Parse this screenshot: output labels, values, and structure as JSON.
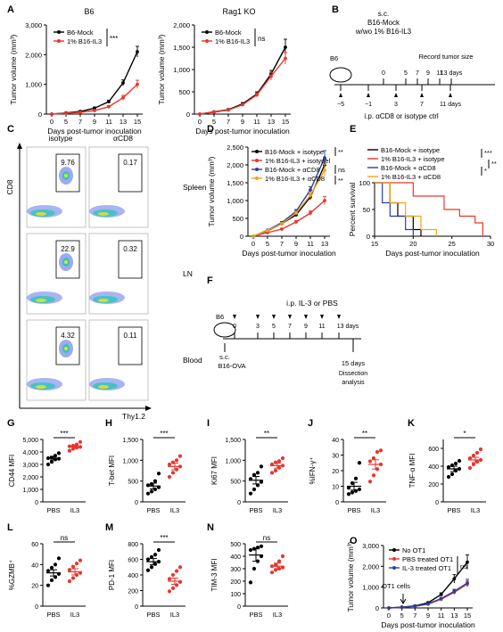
{
  "colors": {
    "black": "#000000",
    "red": "#e8362d",
    "blue": "#2b3fa0",
    "orange": "#f2a31b"
  },
  "panels": {
    "A": {
      "letter": "A",
      "charts": [
        {
          "id": "A1",
          "title": "B6",
          "ylabel": "Tumor volume (mm³)",
          "xlabel": "Days post-tumor inoculation",
          "xticks": [
            "0",
            "5",
            "7",
            "9",
            "11",
            "13",
            "15"
          ],
          "yticks": [
            "0",
            "1,000",
            "2,000",
            "3,000"
          ],
          "ymax": 3000,
          "series": [
            {
              "name": "B6-Mock",
              "color": "black",
              "values": [
                0,
                40,
                90,
                200,
                420,
                1050,
                2100
              ],
              "err": [
                0,
                10,
                20,
                30,
                50,
                100,
                180
              ]
            },
            {
              "name": "1% B16-IL3",
              "color": "red",
              "values": [
                0,
                30,
                60,
                120,
                250,
                550,
                1000
              ],
              "err": [
                0,
                10,
                15,
                25,
                40,
                80,
                140
              ]
            }
          ],
          "sig": "***"
        },
        {
          "id": "A2",
          "title": "Rag1 KO",
          "ylabel": "Tumor volume (mm³)",
          "xlabel": "Days post-tumor inoculation",
          "xticks": [
            "0",
            "5",
            "7",
            "9",
            "11",
            "13",
            "15"
          ],
          "yticks": [
            "0",
            "500",
            "1,000",
            "1,500",
            "2,000"
          ],
          "ymax": 2000,
          "series": [
            {
              "name": "B6-Mock",
              "color": "black",
              "values": [
                0,
                50,
                100,
                230,
                450,
                900,
                1500
              ],
              "err": [
                0,
                10,
                15,
                30,
                50,
                80,
                180
              ]
            },
            {
              "name": "1% B16-IL3",
              "color": "red",
              "values": [
                0,
                45,
                90,
                210,
                430,
                850,
                1250
              ],
              "err": [
                0,
                10,
                15,
                30,
                45,
                90,
                130
              ]
            }
          ],
          "sig": "ns"
        }
      ]
    },
    "B": {
      "letter": "B",
      "title1": "s.c.",
      "title2": "B16-Mock",
      "title3": "w/wo 1% B16-IL3",
      "record": "Record tumor size",
      "mouse": "B6",
      "top_days": [
        "0",
        "5",
        "7",
        "9",
        "11",
        "13 days"
      ],
      "bottom_days": [
        "−5",
        "−1",
        "3",
        "7",
        "11 days"
      ],
      "caption": "i.p. αCD8 or isotype ctrl"
    },
    "C": {
      "letter": "C",
      "col_labels": [
        "isotype",
        "αCD8"
      ],
      "row_labels": [
        "Spleen",
        "LN",
        "Blood"
      ],
      "values": [
        [
          "9.76",
          "0.17"
        ],
        [
          "22.9",
          "0.32"
        ],
        [
          "4.32",
          "0.11"
        ]
      ],
      "ylabel": "CD8",
      "xlabel": "Thy1.2"
    },
    "D": {
      "letter": "D",
      "ylabel": "Tumor volume (mm³)",
      "xlabel": "Days post-tumor inoculation",
      "xticks": [
        "0",
        "5",
        "7",
        "9",
        "11",
        "13"
      ],
      "yticks": [
        "0",
        "500",
        "1,000",
        "1,500",
        "2,000",
        "2,500"
      ],
      "ymax": 2500,
      "series": [
        {
          "name": "B16-Mock + isotype",
          "color": "black",
          "values": [
            0,
            150,
            350,
            600,
            1100,
            2000
          ],
          "err": [
            0,
            20,
            30,
            50,
            80,
            160
          ]
        },
        {
          "name": "1% B16-IL3 + isotypel",
          "color": "red",
          "values": [
            0,
            100,
            200,
            400,
            650,
            1000
          ],
          "err": [
            0,
            15,
            25,
            40,
            60,
            110
          ]
        },
        {
          "name": "B16-Mock + αCD8",
          "color": "blue",
          "values": [
            0,
            170,
            380,
            700,
            1300,
            2200
          ],
          "err": [
            0,
            20,
            30,
            50,
            90,
            200
          ]
        },
        {
          "name": "1% B16-IL3 + αCD8",
          "color": "orange",
          "values": [
            0,
            160,
            350,
            650,
            1150,
            1850
          ],
          "err": [
            0,
            20,
            30,
            50,
            80,
            170
          ]
        }
      ],
      "sigs": [
        "**",
        "ns",
        "**"
      ]
    },
    "E": {
      "letter": "E",
      "ylabel": "Percent survival",
      "xlabel": "Days post-tumor inoculation",
      "xticks": [
        "15",
        "20",
        "25",
        "30"
      ],
      "yticks": [
        "0",
        "50",
        "100"
      ],
      "series": [
        {
          "name": "B16-Mock + isotype",
          "color": "black",
          "steps": [
            [
              15,
              100
            ],
            [
              17,
              100
            ],
            [
              17,
              62.5
            ],
            [
              18,
              62.5
            ],
            [
              18,
              37.5
            ],
            [
              20,
              37.5
            ],
            [
              20,
              12.5
            ],
            [
              21,
              12.5
            ],
            [
              21,
              0
            ]
          ]
        },
        {
          "name": "1% B16-IL3 + isotype",
          "color": "red",
          "steps": [
            [
              15,
              100
            ],
            [
              20,
              100
            ],
            [
              20,
              75
            ],
            [
              24,
              75
            ],
            [
              24,
              50
            ],
            [
              26,
              50
            ],
            [
              26,
              37.5
            ],
            [
              28,
              37.5
            ],
            [
              28,
              25
            ],
            [
              29,
              25
            ],
            [
              29,
              0
            ]
          ]
        },
        {
          "name": "B16-Mock + αCD8",
          "color": "blue",
          "steps": [
            [
              15,
              100
            ],
            [
              16,
              100
            ],
            [
              16,
              62.5
            ],
            [
              17,
              62.5
            ],
            [
              17,
              37.5
            ],
            [
              19,
              37.5
            ],
            [
              19,
              12.5
            ],
            [
              20,
              12.5
            ],
            [
              20,
              0
            ]
          ]
        },
        {
          "name": "1% B16-IL3 + αCD8",
          "color": "orange",
          "steps": [
            [
              15,
              100
            ],
            [
              17,
              100
            ],
            [
              17,
              62.5
            ],
            [
              19,
              62.5
            ],
            [
              19,
              37.5
            ],
            [
              21,
              37.5
            ],
            [
              21,
              12.5
            ],
            [
              23,
              12.5
            ],
            [
              23,
              0
            ]
          ]
        }
      ],
      "sigs": [
        "***",
        "*",
        "**"
      ]
    },
    "F": {
      "letter": "F",
      "title": "i.p. IL-3 or PBS",
      "mouse": "B6",
      "sc": "s.c.",
      "tumor": "B16-OVA",
      "days": [
        "0",
        "3",
        "5",
        "7",
        "9",
        "11",
        "13 days"
      ],
      "end": "15 days",
      "end2": "Dissection",
      "end3": "analysis"
    },
    "dots": [
      {
        "letter": "G",
        "ylabel": "CD44 MFI",
        "yticks": [
          "0",
          "1,000",
          "2,000",
          "3,000",
          "4,000",
          "5,000"
        ],
        "ymax": 5000,
        "sig": "***",
        "groups": [
          {
            "label": "PBS",
            "color": "black",
            "mean": 3500,
            "sem": 150,
            "pts": [
              3000,
              3200,
              3400,
              3450,
              3500,
              3550,
              3700,
              3900
            ]
          },
          {
            "label": "IL3",
            "color": "red",
            "mean": 4400,
            "sem": 100,
            "pts": [
              4100,
              4250,
              4350,
              4400,
              4450,
              4500,
              4600,
              4800
            ]
          }
        ]
      },
      {
        "letter": "H",
        "ylabel": "T-bet MFI",
        "yticks": [
          "0",
          "500",
          "1,000",
          "1,500"
        ],
        "ymax": 1500,
        "sig": "***",
        "groups": [
          {
            "label": "PBS",
            "color": "black",
            "mean": 380,
            "sem": 70,
            "pts": [
              200,
              250,
              300,
              350,
              400,
              430,
              500,
              680
            ]
          },
          {
            "label": "IL3",
            "color": "red",
            "mean": 850,
            "sem": 80,
            "pts": [
              600,
              700,
              780,
              850,
              900,
              950,
              1000,
              1100
            ]
          }
        ]
      },
      {
        "letter": "I",
        "ylabel": "Ki67 MFI",
        "yticks": [
          "0",
          "500",
          "1,000",
          "1,500"
        ],
        "ymax": 1500,
        "sig": "**",
        "groups": [
          {
            "label": "PBS",
            "color": "black",
            "mean": 520,
            "sem": 90,
            "pts": [
              200,
              300,
              400,
              480,
              550,
              650,
              700,
              850
            ]
          },
          {
            "label": "IL3",
            "color": "red",
            "mean": 870,
            "sem": 60,
            "pts": [
              700,
              750,
              820,
              870,
              900,
              950,
              980,
              1050
            ]
          }
        ]
      },
      {
        "letter": "J",
        "ylabel": "%IFN-γ⁺",
        "yticks": [
          "0",
          "10",
          "20",
          "30",
          "40"
        ],
        "ymax": 40,
        "sig": "**",
        "groups": [
          {
            "label": "PBS",
            "color": "black",
            "mean": 10,
            "sem": 2.5,
            "pts": [
              5,
              6,
              7,
              8,
              9,
              12,
              15,
              25
            ]
          },
          {
            "label": "IL3",
            "color": "red",
            "mean": 24,
            "sem": 3,
            "pts": [
              13,
              17,
              21,
              24,
              26,
              28,
              32,
              33
            ]
          }
        ]
      },
      {
        "letter": "K",
        "ylabel": "TNF-α MFI",
        "yticks": [
          "0",
          "200",
          "400",
          "600"
        ],
        "ymax": 700,
        "sig": "*",
        "groups": [
          {
            "label": "PBS",
            "color": "black",
            "mean": 370,
            "sem": 30,
            "pts": [
              280,
              310,
              350,
              370,
              390,
              410,
              430,
              460
            ]
          },
          {
            "label": "IL3",
            "color": "red",
            "mean": 470,
            "sem": 30,
            "pts": [
              380,
              420,
              450,
              470,
              490,
              520,
              550,
              590
            ]
          }
        ]
      },
      {
        "letter": "L",
        "ylabel": "%GZMB⁺",
        "yticks": [
          "0",
          "20",
          "40",
          "60"
        ],
        "ymax": 60,
        "sig": "ns",
        "groups": [
          {
            "label": "PBS",
            "color": "black",
            "mean": 32,
            "sem": 3,
            "pts": [
              20,
              25,
              28,
              31,
              34,
              37,
              40,
              46
            ]
          },
          {
            "label": "IL3",
            "color": "red",
            "mean": 33,
            "sem": 3,
            "pts": [
              24,
              27,
              30,
              32,
              35,
              38,
              41,
              44
            ]
          }
        ]
      },
      {
        "letter": "M",
        "ylabel": "PD-1 MFI",
        "yticks": [
          "0",
          "200",
          "400",
          "600",
          "800"
        ],
        "ymax": 800,
        "sig": "***",
        "groups": [
          {
            "label": "PBS",
            "color": "black",
            "mean": 570,
            "sem": 40,
            "pts": [
              460,
              500,
              540,
              570,
              600,
              630,
              660,
              720
            ]
          },
          {
            "label": "IL3",
            "color": "red",
            "mean": 320,
            "sem": 40,
            "pts": [
              190,
              230,
              270,
              310,
              350,
              400,
              450,
              500
            ]
          }
        ]
      },
      {
        "letter": "N",
        "ylabel": "TIM-3 MFI",
        "yticks": [
          "0",
          "100",
          "200",
          "300",
          "400",
          "500"
        ],
        "ymax": 500,
        "sig": "ns",
        "groups": [
          {
            "label": "PBS",
            "color": "black",
            "mean": 410,
            "sem": 50,
            "pts": [
              190,
              300,
              360,
              400,
              450,
              460,
              470,
              480
            ]
          },
          {
            "label": "IL3",
            "color": "red",
            "mean": 320,
            "sem": 25,
            "pts": [
              270,
              290,
              300,
              310,
              320,
              330,
              360,
              400
            ]
          }
        ]
      }
    ],
    "O": {
      "letter": "O",
      "ylabel": "Tumor volume (mm³)",
      "xlabel": "Days post-tumor inoculation",
      "xticks": [
        "0",
        "5",
        "7",
        "9",
        "11",
        "13",
        "15"
      ],
      "yticks": [
        "0",
        "1,000",
        "2,000",
        "3,000"
      ],
      "ymax": 3000,
      "annotation": "OT1 cells",
      "series": [
        {
          "name": "No OT1",
          "color": "black",
          "values": [
            0,
            40,
            100,
            250,
            650,
            1400,
            2200
          ],
          "err": [
            0,
            10,
            20,
            40,
            80,
            200,
            350
          ]
        },
        {
          "name": "PBS treated OT1",
          "color": "red",
          "values": [
            0,
            30,
            80,
            180,
            420,
            750,
            1150
          ],
          "err": [
            0,
            10,
            20,
            30,
            60,
            100,
            150
          ]
        },
        {
          "name": "IL-3 treated OT1",
          "color": "blue",
          "values": [
            0,
            30,
            90,
            200,
            450,
            800,
            1200
          ],
          "err": [
            0,
            10,
            20,
            30,
            60,
            100,
            180
          ]
        }
      ],
      "sig": "ns"
    }
  }
}
